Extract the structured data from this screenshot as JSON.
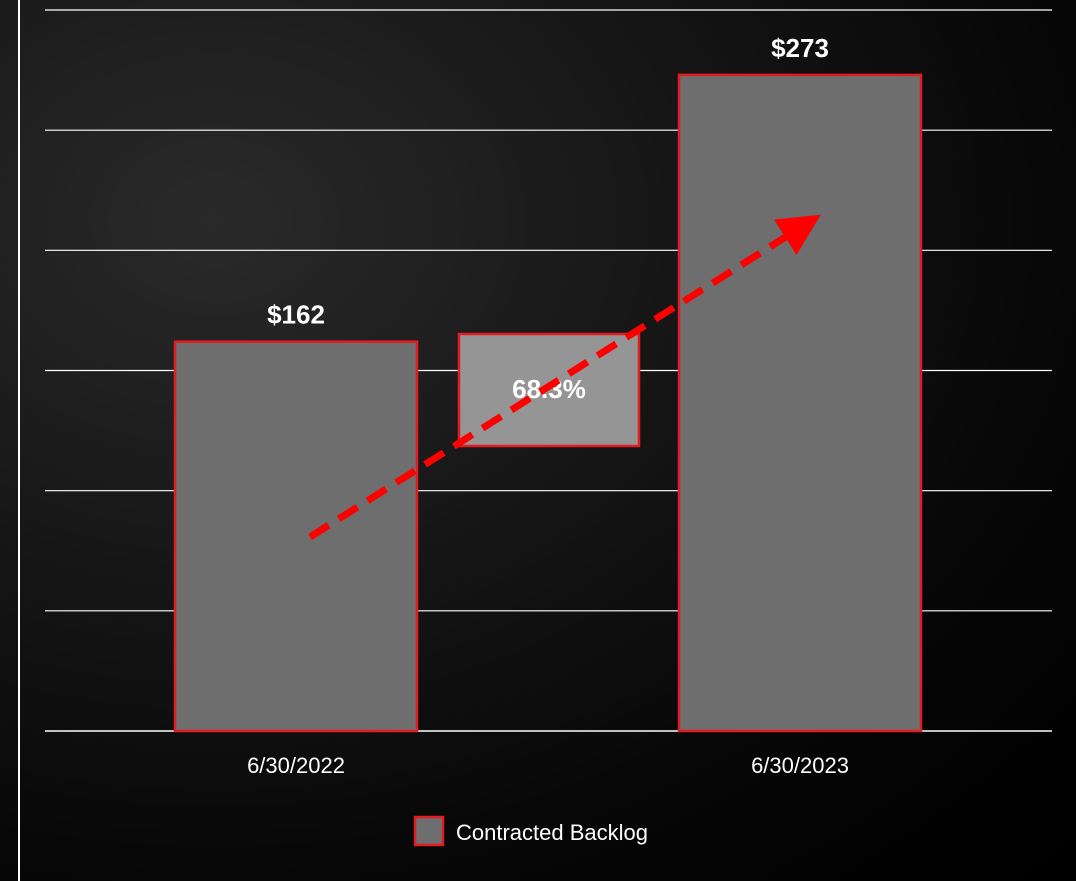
{
  "chart_data": {
    "type": "bar",
    "categories": [
      "6/30/2022",
      "6/30/2023"
    ],
    "series": [
      {
        "name": "Contracted Backlog",
        "values": [
          162,
          273
        ],
        "labels": [
          "$162",
          "$273"
        ]
      }
    ],
    "ylim": [
      0,
      300
    ],
    "grid": true,
    "legend": "bottom-center",
    "annotation": {
      "text": "68.3%",
      "type": "growth-arrow"
    },
    "colors": {
      "bar_fill": "#6e6e6e",
      "bar_border": "#e31b23",
      "gridline": "#ffffff",
      "annotation_box_fill": "#959595",
      "arrow": "#ff0000"
    }
  }
}
